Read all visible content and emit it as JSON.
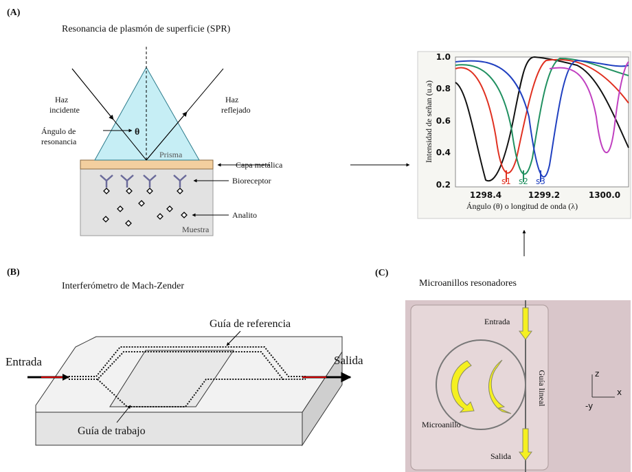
{
  "panel_a": {
    "label": "(A)",
    "title": "Resonancia de plasmón de superficie (SPR)",
    "incident": [
      "Haz",
      "incidente"
    ],
    "reflected": [
      "Haz",
      "reflejado"
    ],
    "angle": [
      "Ángulo de",
      "resonancia"
    ],
    "theta": "θ",
    "prism": "Prisma",
    "metal": "Capa metálica",
    "bioreceptor": "Bioreceptor",
    "analyte": "Analito",
    "sample": "Muestra"
  },
  "plot": {
    "y_label": "Intensidad de señan (u.a)",
    "x_label": "Ángulo (θ) o longitud de onda (λ)",
    "yticks": [
      "1.0",
      "0.8",
      "0.6",
      "0.4",
      "0.2"
    ],
    "xticks": [
      "1298.4",
      "1299.2",
      "1300.0"
    ],
    "peaks": [
      "s1",
      "s2",
      "s3"
    ]
  },
  "panel_b": {
    "label": "(B)",
    "title": "Interferómetro de Mach-Zender",
    "input": "Entrada",
    "output": "Salida",
    "reference": "Guía de referencia",
    "working": "Guía de trabajo"
  },
  "panel_c": {
    "label": "(C)",
    "title": "Microanillos resonadores",
    "input": "Entrada",
    "output": "Salida",
    "guide": "Guía lineal",
    "ring": "Microanillo",
    "axes": [
      "z",
      "x",
      "-y"
    ]
  }
}
